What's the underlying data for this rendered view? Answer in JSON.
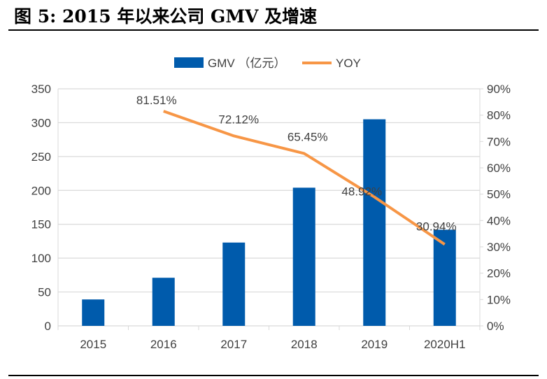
{
  "title": "图 5: 2015 年以来公司 GMV 及增速",
  "chart_data": {
    "type": "bar+line",
    "categories": [
      "2015",
      "2016",
      "2017",
      "2018",
      "2019",
      "2020H1"
    ],
    "series": [
      {
        "name": "GMV （亿元）",
        "type": "bar",
        "axis": "left",
        "color": "#005BAC",
        "values": [
          39,
          71,
          123,
          204,
          305,
          142
        ]
      },
      {
        "name": "YOY",
        "type": "line",
        "axis": "right",
        "color": "#F79646",
        "values": [
          null,
          81.51,
          72.12,
          65.45,
          48.92,
          30.94
        ],
        "labels": [
          "",
          "81.51%",
          "72.12%",
          "65.45%",
          "48.92%",
          "30.94%"
        ]
      }
    ],
    "ylim": [
      0,
      350
    ],
    "yticks": [
      "0",
      "50",
      "100",
      "150",
      "200",
      "250",
      "300",
      "350"
    ],
    "y2lim": [
      0,
      90
    ],
    "y2ticks": [
      "0%",
      "10%",
      "20%",
      "30%",
      "40%",
      "50%",
      "60%",
      "70%",
      "80%",
      "90%"
    ],
    "grid": true,
    "legend": "top"
  }
}
